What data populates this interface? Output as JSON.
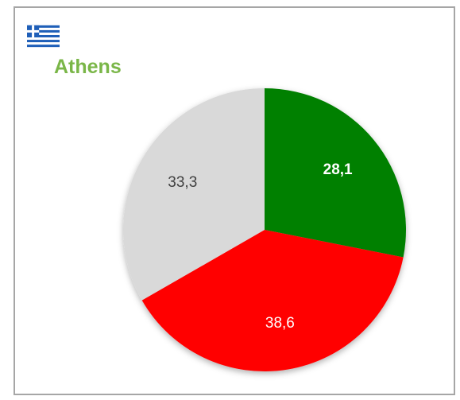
{
  "header": {
    "title": "Athens",
    "flag_icon": "greece-flag-icon"
  },
  "colors": {
    "title": "#7ab648",
    "frame_border": "#a6a6a6"
  },
  "chart_data": {
    "type": "pie",
    "title": "Athens",
    "start_angle_deg": 0,
    "direction": "clockwise",
    "slices": [
      {
        "label": "28,1",
        "value": 28.1,
        "color": "#008000",
        "label_color": "#ffffff",
        "label_bold": true
      },
      {
        "label": "38,6",
        "value": 38.6,
        "color": "#ff0000",
        "label_color": "#ffffff",
        "label_bold": false
      },
      {
        "label": "33,3",
        "value": 33.3,
        "color": "#d9d9d9",
        "label_color": "#404040",
        "label_bold": false
      }
    ],
    "legend": "none"
  }
}
